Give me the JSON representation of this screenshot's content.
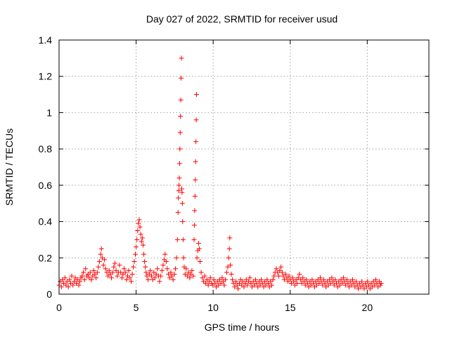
{
  "chart_data": {
    "type": "scatter",
    "title": "Day 027 of 2022, SRMTID for receiver usud",
    "xlabel": "GPS time / hours",
    "ylabel": "SRMTID / TECUs",
    "xlim": [
      0,
      24
    ],
    "ylim": [
      0,
      1.4
    ],
    "xticks": [
      0,
      5,
      10,
      15,
      20
    ],
    "xtick_labels": [
      "0",
      "5",
      "10",
      "15",
      "20"
    ],
    "yticks": [
      0,
      0.2,
      0.4,
      0.6,
      0.8,
      1.0,
      1.2,
      1.4
    ],
    "ytick_labels": [
      "0",
      "0.2",
      "0.4",
      "0.6",
      "0.8",
      "1",
      "1.2",
      "1.4"
    ],
    "grid": true,
    "marker": "+",
    "color": "#ff0000",
    "series": [
      {
        "name": "SRMTID",
        "points": [
          [
            0.0,
            0.05
          ],
          [
            0.08,
            0.07
          ],
          [
            0.15,
            0.04
          ],
          [
            0.22,
            0.08
          ],
          [
            0.3,
            0.06
          ],
          [
            0.38,
            0.09
          ],
          [
            0.45,
            0.05
          ],
          [
            0.52,
            0.07
          ],
          [
            0.6,
            0.04
          ],
          [
            0.68,
            0.08
          ],
          [
            0.75,
            0.06
          ],
          [
            0.82,
            0.1
          ],
          [
            0.9,
            0.05
          ],
          [
            0.98,
            0.07
          ],
          [
            1.05,
            0.09
          ],
          [
            1.12,
            0.06
          ],
          [
            1.2,
            0.08
          ],
          [
            1.28,
            0.05
          ],
          [
            1.35,
            0.07
          ],
          [
            1.42,
            0.09
          ],
          [
            1.5,
            0.1
          ],
          [
            1.58,
            0.12
          ],
          [
            1.65,
            0.08
          ],
          [
            1.72,
            0.14
          ],
          [
            1.8,
            0.1
          ],
          [
            1.88,
            0.11
          ],
          [
            1.95,
            0.09
          ],
          [
            2.02,
            0.12
          ],
          [
            2.1,
            0.08
          ],
          [
            2.18,
            0.1
          ],
          [
            2.25,
            0.13
          ],
          [
            2.32,
            0.11
          ],
          [
            2.4,
            0.09
          ],
          [
            2.48,
            0.12
          ],
          [
            2.55,
            0.15
          ],
          [
            2.62,
            0.18
          ],
          [
            2.7,
            0.22
          ],
          [
            2.75,
            0.25
          ],
          [
            2.8,
            0.2
          ],
          [
            2.88,
            0.16
          ],
          [
            2.95,
            0.19
          ],
          [
            3.02,
            0.14
          ],
          [
            3.1,
            0.12
          ],
          [
            3.18,
            0.1
          ],
          [
            3.25,
            0.13
          ],
          [
            3.32,
            0.11
          ],
          [
            3.4,
            0.09
          ],
          [
            3.48,
            0.12
          ],
          [
            3.55,
            0.15
          ],
          [
            3.62,
            0.17
          ],
          [
            3.7,
            0.13
          ],
          [
            3.78,
            0.1
          ],
          [
            3.85,
            0.12
          ],
          [
            3.92,
            0.16
          ],
          [
            4.0,
            0.12
          ],
          [
            4.08,
            0.09
          ],
          [
            4.15,
            0.11
          ],
          [
            4.22,
            0.14
          ],
          [
            4.3,
            0.12
          ],
          [
            4.38,
            0.08
          ],
          [
            4.45,
            0.1
          ],
          [
            4.52,
            0.13
          ],
          [
            4.6,
            0.09
          ],
          [
            4.68,
            0.07
          ],
          [
            4.75,
            0.11
          ],
          [
            4.82,
            0.15
          ],
          [
            4.88,
            0.18
          ],
          [
            4.95,
            0.22
          ],
          [
            5.0,
            0.26
          ],
          [
            5.05,
            0.3
          ],
          [
            5.1,
            0.35
          ],
          [
            5.15,
            0.39
          ],
          [
            5.2,
            0.41
          ],
          [
            5.25,
            0.37
          ],
          [
            5.3,
            0.33
          ],
          [
            5.35,
            0.29
          ],
          [
            5.4,
            0.31
          ],
          [
            5.45,
            0.27
          ],
          [
            5.5,
            0.22
          ],
          [
            5.55,
            0.18
          ],
          [
            5.6,
            0.15
          ],
          [
            5.65,
            0.12
          ],
          [
            5.7,
            0.1
          ],
          [
            5.78,
            0.08
          ],
          [
            5.85,
            0.11
          ],
          [
            5.92,
            0.13
          ],
          [
            6.0,
            0.1
          ],
          [
            6.08,
            0.08
          ],
          [
            6.15,
            0.12
          ],
          [
            6.22,
            0.09
          ],
          [
            6.3,
            0.11
          ],
          [
            6.38,
            0.14
          ],
          [
            6.45,
            0.1
          ],
          [
            6.52,
            0.07
          ],
          [
            6.6,
            0.1
          ],
          [
            6.68,
            0.13
          ],
          [
            6.75,
            0.16
          ],
          [
            6.82,
            0.19
          ],
          [
            6.88,
            0.22
          ],
          [
            6.95,
            0.18
          ],
          [
            7.02,
            0.14
          ],
          [
            7.1,
            0.11
          ],
          [
            7.18,
            0.09
          ],
          [
            7.25,
            0.12
          ],
          [
            7.32,
            0.1
          ],
          [
            7.4,
            0.08
          ],
          [
            7.48,
            0.11
          ],
          [
            7.55,
            0.14
          ],
          [
            7.62,
            0.2
          ],
          [
            7.68,
            0.3
          ],
          [
            7.72,
            0.45
          ],
          [
            7.74,
            0.53
          ],
          [
            7.76,
            0.57
          ],
          [
            7.78,
            0.6
          ],
          [
            7.8,
            0.64
          ],
          [
            7.82,
            0.72
          ],
          [
            7.84,
            0.8
          ],
          [
            7.86,
            0.89
          ],
          [
            7.88,
            0.98
          ],
          [
            7.9,
            1.07
          ],
          [
            7.92,
            1.19
          ],
          [
            7.94,
            1.3
          ],
          [
            7.96,
            0.58
          ],
          [
            7.98,
            0.56
          ],
          [
            8.0,
            0.5
          ],
          [
            8.02,
            0.4
          ],
          [
            8.05,
            0.3
          ],
          [
            8.08,
            0.2
          ],
          [
            8.12,
            0.15
          ],
          [
            8.18,
            0.11
          ],
          [
            8.25,
            0.14
          ],
          [
            8.32,
            0.1
          ],
          [
            8.4,
            0.12
          ],
          [
            8.48,
            0.09
          ],
          [
            8.55,
            0.11
          ],
          [
            8.62,
            0.13
          ],
          [
            8.7,
            0.1
          ],
          [
            8.76,
            0.3
          ],
          [
            8.78,
            0.38
          ],
          [
            8.8,
            0.46
          ],
          [
            8.82,
            0.54
          ],
          [
            8.84,
            0.63
          ],
          [
            8.86,
            0.73
          ],
          [
            8.88,
            0.84
          ],
          [
            8.9,
            0.96
          ],
          [
            8.92,
            1.1
          ],
          [
            8.95,
            0.2
          ],
          [
            9.0,
            0.24
          ],
          [
            9.05,
            0.28
          ],
          [
            9.1,
            0.25
          ],
          [
            9.15,
            0.18
          ],
          [
            9.22,
            0.12
          ],
          [
            9.3,
            0.09
          ],
          [
            9.38,
            0.07
          ],
          [
            9.45,
            0.1
          ],
          [
            9.52,
            0.06
          ],
          [
            9.6,
            0.08
          ],
          [
            9.68,
            0.05
          ],
          [
            9.75,
            0.07
          ],
          [
            9.82,
            0.09
          ],
          [
            9.9,
            0.06
          ],
          [
            9.98,
            0.05
          ],
          [
            10.05,
            0.08
          ],
          [
            10.12,
            0.06
          ],
          [
            10.2,
            0.04
          ],
          [
            10.28,
            0.07
          ],
          [
            10.35,
            0.05
          ],
          [
            10.42,
            0.08
          ],
          [
            10.5,
            0.06
          ],
          [
            10.58,
            0.09
          ],
          [
            10.65,
            0.07
          ],
          [
            10.72,
            0.05
          ],
          [
            10.8,
            0.08
          ],
          [
            10.88,
            0.12
          ],
          [
            10.95,
            0.15
          ],
          [
            11.0,
            0.2
          ],
          [
            11.05,
            0.25
          ],
          [
            11.08,
            0.31
          ],
          [
            11.12,
            0.16
          ],
          [
            11.18,
            0.11
          ],
          [
            11.25,
            0.08
          ],
          [
            11.32,
            0.06
          ],
          [
            11.4,
            0.04
          ],
          [
            11.48,
            0.07
          ],
          [
            11.55,
            0.05
          ],
          [
            11.62,
            0.03
          ],
          [
            11.7,
            0.06
          ],
          [
            11.78,
            0.08
          ],
          [
            11.85,
            0.05
          ],
          [
            11.92,
            0.07
          ],
          [
            12.0,
            0.04
          ],
          [
            12.08,
            0.06
          ],
          [
            12.15,
            0.08
          ],
          [
            12.22,
            0.05
          ],
          [
            12.3,
            0.07
          ],
          [
            12.38,
            0.09
          ],
          [
            12.45,
            0.06
          ],
          [
            12.52,
            0.04
          ],
          [
            12.6,
            0.07
          ],
          [
            12.68,
            0.05
          ],
          [
            12.75,
            0.08
          ],
          [
            12.82,
            0.06
          ],
          [
            12.9,
            0.04
          ],
          [
            12.98,
            0.07
          ],
          [
            13.05,
            0.05
          ],
          [
            13.12,
            0.08
          ],
          [
            13.2,
            0.06
          ],
          [
            13.28,
            0.04
          ],
          [
            13.35,
            0.07
          ],
          [
            13.42,
            0.05
          ],
          [
            13.5,
            0.08
          ],
          [
            13.58,
            0.06
          ],
          [
            13.65,
            0.04
          ],
          [
            13.72,
            0.07
          ],
          [
            13.8,
            0.05
          ],
          [
            13.88,
            0.08
          ],
          [
            13.95,
            0.1
          ],
          [
            14.02,
            0.12
          ],
          [
            14.1,
            0.14
          ],
          [
            14.18,
            0.12
          ],
          [
            14.25,
            0.1
          ],
          [
            14.32,
            0.13
          ],
          [
            14.4,
            0.15
          ],
          [
            14.48,
            0.12
          ],
          [
            14.55,
            0.1
          ],
          [
            14.62,
            0.08
          ],
          [
            14.7,
            0.11
          ],
          [
            14.78,
            0.09
          ],
          [
            14.85,
            0.07
          ],
          [
            14.92,
            0.1
          ],
          [
            15.0,
            0.08
          ],
          [
            15.08,
            0.06
          ],
          [
            15.15,
            0.09
          ],
          [
            15.22,
            0.07
          ],
          [
            15.3,
            0.05
          ],
          [
            15.38,
            0.08
          ],
          [
            15.45,
            0.06
          ],
          [
            15.52,
            0.09
          ],
          [
            15.6,
            0.11
          ],
          [
            15.68,
            0.08
          ],
          [
            15.75,
            0.06
          ],
          [
            15.82,
            0.09
          ],
          [
            15.9,
            0.07
          ],
          [
            15.98,
            0.05
          ],
          [
            16.05,
            0.08
          ],
          [
            16.12,
            0.06
          ],
          [
            16.2,
            0.04
          ],
          [
            16.28,
            0.07
          ],
          [
            16.35,
            0.05
          ],
          [
            16.42,
            0.08
          ],
          [
            16.5,
            0.06
          ],
          [
            16.58,
            0.04
          ],
          [
            16.65,
            0.07
          ],
          [
            16.72,
            0.05
          ],
          [
            16.8,
            0.08
          ],
          [
            16.88,
            0.06
          ],
          [
            16.95,
            0.09
          ],
          [
            17.02,
            0.07
          ],
          [
            17.1,
            0.05
          ],
          [
            17.18,
            0.08
          ],
          [
            17.25,
            0.06
          ],
          [
            17.32,
            0.04
          ],
          [
            17.4,
            0.07
          ],
          [
            17.48,
            0.05
          ],
          [
            17.55,
            0.08
          ],
          [
            17.62,
            0.06
          ],
          [
            17.7,
            0.09
          ],
          [
            17.78,
            0.07
          ],
          [
            17.85,
            0.05
          ],
          [
            17.92,
            0.08
          ],
          [
            18.0,
            0.06
          ],
          [
            18.08,
            0.04
          ],
          [
            18.15,
            0.07
          ],
          [
            18.22,
            0.05
          ],
          [
            18.3,
            0.08
          ],
          [
            18.38,
            0.06
          ],
          [
            18.45,
            0.09
          ],
          [
            18.52,
            0.07
          ],
          [
            18.6,
            0.05
          ],
          [
            18.68,
            0.08
          ],
          [
            18.75,
            0.06
          ],
          [
            18.82,
            0.04
          ],
          [
            18.9,
            0.07
          ],
          [
            18.98,
            0.05
          ],
          [
            19.05,
            0.08
          ],
          [
            19.12,
            0.06
          ],
          [
            19.2,
            0.04
          ],
          [
            19.28,
            0.07
          ],
          [
            19.35,
            0.05
          ],
          [
            19.42,
            0.03
          ],
          [
            19.5,
            0.06
          ],
          [
            19.58,
            0.04
          ],
          [
            19.65,
            0.07
          ],
          [
            19.72,
            0.05
          ],
          [
            19.8,
            0.03
          ],
          [
            19.88,
            0.06
          ],
          [
            19.95,
            0.04
          ],
          [
            20.02,
            0.07
          ],
          [
            20.1,
            0.05
          ],
          [
            20.18,
            0.03
          ],
          [
            20.25,
            0.06
          ],
          [
            20.32,
            0.04
          ],
          [
            20.4,
            0.07
          ],
          [
            20.48,
            0.05
          ],
          [
            20.55,
            0.08
          ],
          [
            20.62,
            0.06
          ],
          [
            20.7,
            0.04
          ],
          [
            20.78,
            0.07
          ],
          [
            20.85,
            0.05
          ],
          [
            20.9,
            0.06
          ]
        ]
      }
    ]
  }
}
